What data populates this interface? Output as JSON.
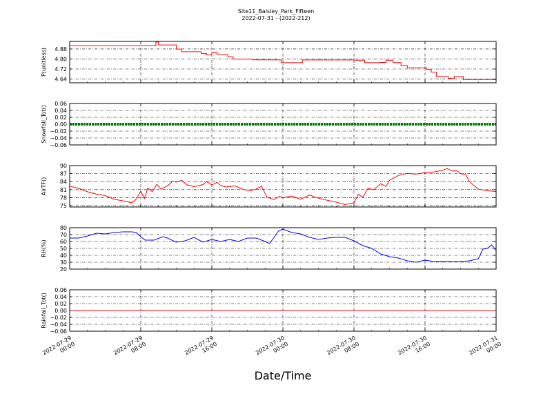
{
  "title": "Site11_Baisley_Park_Fifteen",
  "subtitle": "2022-07-31 - (2022-212)",
  "xlabel": "Date/Time",
  "x_ticks": [
    {
      "line1": "2022-07-29",
      "line2": "00:00"
    },
    {
      "line1": "2022-07-29",
      "line2": "08:00"
    },
    {
      "line1": "2022-07-29",
      "line2": "16:00"
    },
    {
      "line1": "2022-07-30",
      "line2": "00:00"
    },
    {
      "line1": "2022-07-30",
      "line2": "08:00"
    },
    {
      "line1": "2022-07-30",
      "line2": "16:00"
    },
    {
      "line1": "2022-07-31",
      "line2": "00:00"
    }
  ],
  "chart_data": [
    {
      "type": "line",
      "ylabel": "P(unitless)",
      "color": "#ff0000",
      "ylim": [
        4.61,
        4.94
      ],
      "yticks": [
        "4.64",
        "4.72",
        "4.80",
        "4.88"
      ],
      "x_hours": [
        0,
        4,
        8,
        9.7,
        10,
        10.6,
        12,
        12.6,
        14.8,
        15.4,
        16,
        16.6,
        17.8,
        18.4,
        20.6,
        23.4,
        23.8,
        24.4,
        26.2,
        32,
        33.2,
        35,
        35.6,
        36.4,
        37.3,
        38,
        39.6,
        40.2,
        40.7,
        41.3,
        42.6,
        43.3,
        44.3,
        48
      ],
      "values": [
        4.904,
        4.905,
        4.907,
        4.935,
        4.912,
        4.912,
        4.879,
        4.858,
        4.843,
        4.832,
        4.851,
        4.835,
        4.818,
        4.799,
        4.793,
        4.792,
        4.77,
        4.77,
        4.792,
        4.79,
        4.77,
        4.772,
        4.79,
        4.771,
        4.747,
        4.73,
        4.728,
        4.715,
        4.695,
        4.66,
        4.645,
        4.66,
        4.636,
        4.632
      ]
    },
    {
      "type": "line",
      "ylabel": "Snowfall_Tot()",
      "color": "#008000",
      "ylim": [
        -0.06,
        0.06
      ],
      "yticks": [
        "0.06",
        "0.04",
        "0.02",
        "0.00",
        "−0.02",
        "−0.04",
        "−0.06"
      ],
      "x_hours": [
        0,
        48
      ],
      "values": [
        0,
        0
      ]
    },
    {
      "type": "line",
      "ylabel": "AirTF()",
      "color": "#ff0000",
      "ylim": [
        74.5,
        90
      ],
      "yticks": [
        "90",
        "87",
        "84",
        "81",
        "78",
        "75"
      ],
      "x_hours": [
        0,
        1,
        2,
        3,
        4,
        5,
        6,
        7,
        7.5,
        8,
        8.4,
        8.8,
        9.3,
        9.8,
        10.3,
        11,
        11.6,
        12,
        12.6,
        13.2,
        14,
        15,
        15.4,
        16,
        16.6,
        17,
        17.6,
        18.6,
        19.6,
        20.3,
        21,
        21.6,
        22.2,
        23,
        23.6,
        24,
        25,
        26,
        27,
        28,
        29,
        30,
        31,
        32,
        32.5,
        33,
        33.6,
        34.2,
        35,
        35.6,
        36,
        37,
        38,
        39,
        40,
        41,
        42,
        42.5,
        43,
        43.6,
        44,
        44.6,
        45,
        46,
        47,
        48
      ],
      "values": [
        82.3,
        81.5,
        80.2,
        79.3,
        78.8,
        77.4,
        76.8,
        76.1,
        77.5,
        80.5,
        77.6,
        81.6,
        80.2,
        83.0,
        81.2,
        82.4,
        84.1,
        83.8,
        84.5,
        82.8,
        82.1,
        82.9,
        84.0,
        82.8,
        83.7,
        82.5,
        82.0,
        82.4,
        81.0,
        80.6,
        81.2,
        82.3,
        78.2,
        77.3,
        78.5,
        78.0,
        78.6,
        77.4,
        79.0,
        77.8,
        77.0,
        76.3,
        75.4,
        76.1,
        79.2,
        78.2,
        81.6,
        80.9,
        83.2,
        82.2,
        84.5,
        86.3,
        87.1,
        86.8,
        87.4,
        87.6,
        88.3,
        88.9,
        88.0,
        88.1,
        87.0,
        86.6,
        84.0,
        81.2,
        80.6,
        80.3
      ]
    },
    {
      "type": "line",
      "ylabel": "RH(%)",
      "color": "#0000ff",
      "ylim": [
        20,
        80
      ],
      "yticks": [
        "80",
        "70",
        "60",
        "50",
        "40",
        "30",
        "20"
      ],
      "x_hours": [
        0,
        1,
        2,
        3,
        4,
        5,
        6,
        7,
        7.5,
        8,
        8.5,
        9.5,
        10.5,
        11,
        12,
        13,
        14,
        15,
        16,
        17,
        18,
        19,
        20,
        21,
        22,
        22.5,
        23,
        23.5,
        24,
        25,
        26,
        27,
        28,
        29,
        30,
        31,
        32,
        33,
        34,
        35,
        36,
        37,
        38,
        39,
        40,
        41,
        42,
        43,
        44,
        45,
        46,
        46.5,
        47,
        47.5,
        48
      ],
      "values": [
        65,
        65,
        68,
        72,
        71,
        73,
        74,
        74,
        73,
        67,
        62,
        62,
        67,
        65,
        59,
        61,
        66,
        59,
        63,
        60,
        63,
        60,
        65,
        65,
        60,
        57,
        66,
        75,
        78,
        73,
        71,
        66,
        63,
        65,
        66,
        66,
        61,
        54,
        50,
        42,
        38,
        36,
        32,
        30,
        33,
        31,
        31,
        31,
        31,
        32,
        35,
        49,
        50,
        55,
        47
      ]
    },
    {
      "type": "line",
      "ylabel": "Rainfall_Tot()",
      "color": "#ff0000",
      "ylim": [
        -0.06,
        0.06
      ],
      "yticks": [
        "0.06",
        "0.04",
        "0.02",
        "0.00",
        "−0.02",
        "−0.04",
        "−0.06"
      ],
      "x_hours": [
        0,
        48
      ],
      "values": [
        0,
        0
      ]
    }
  ]
}
